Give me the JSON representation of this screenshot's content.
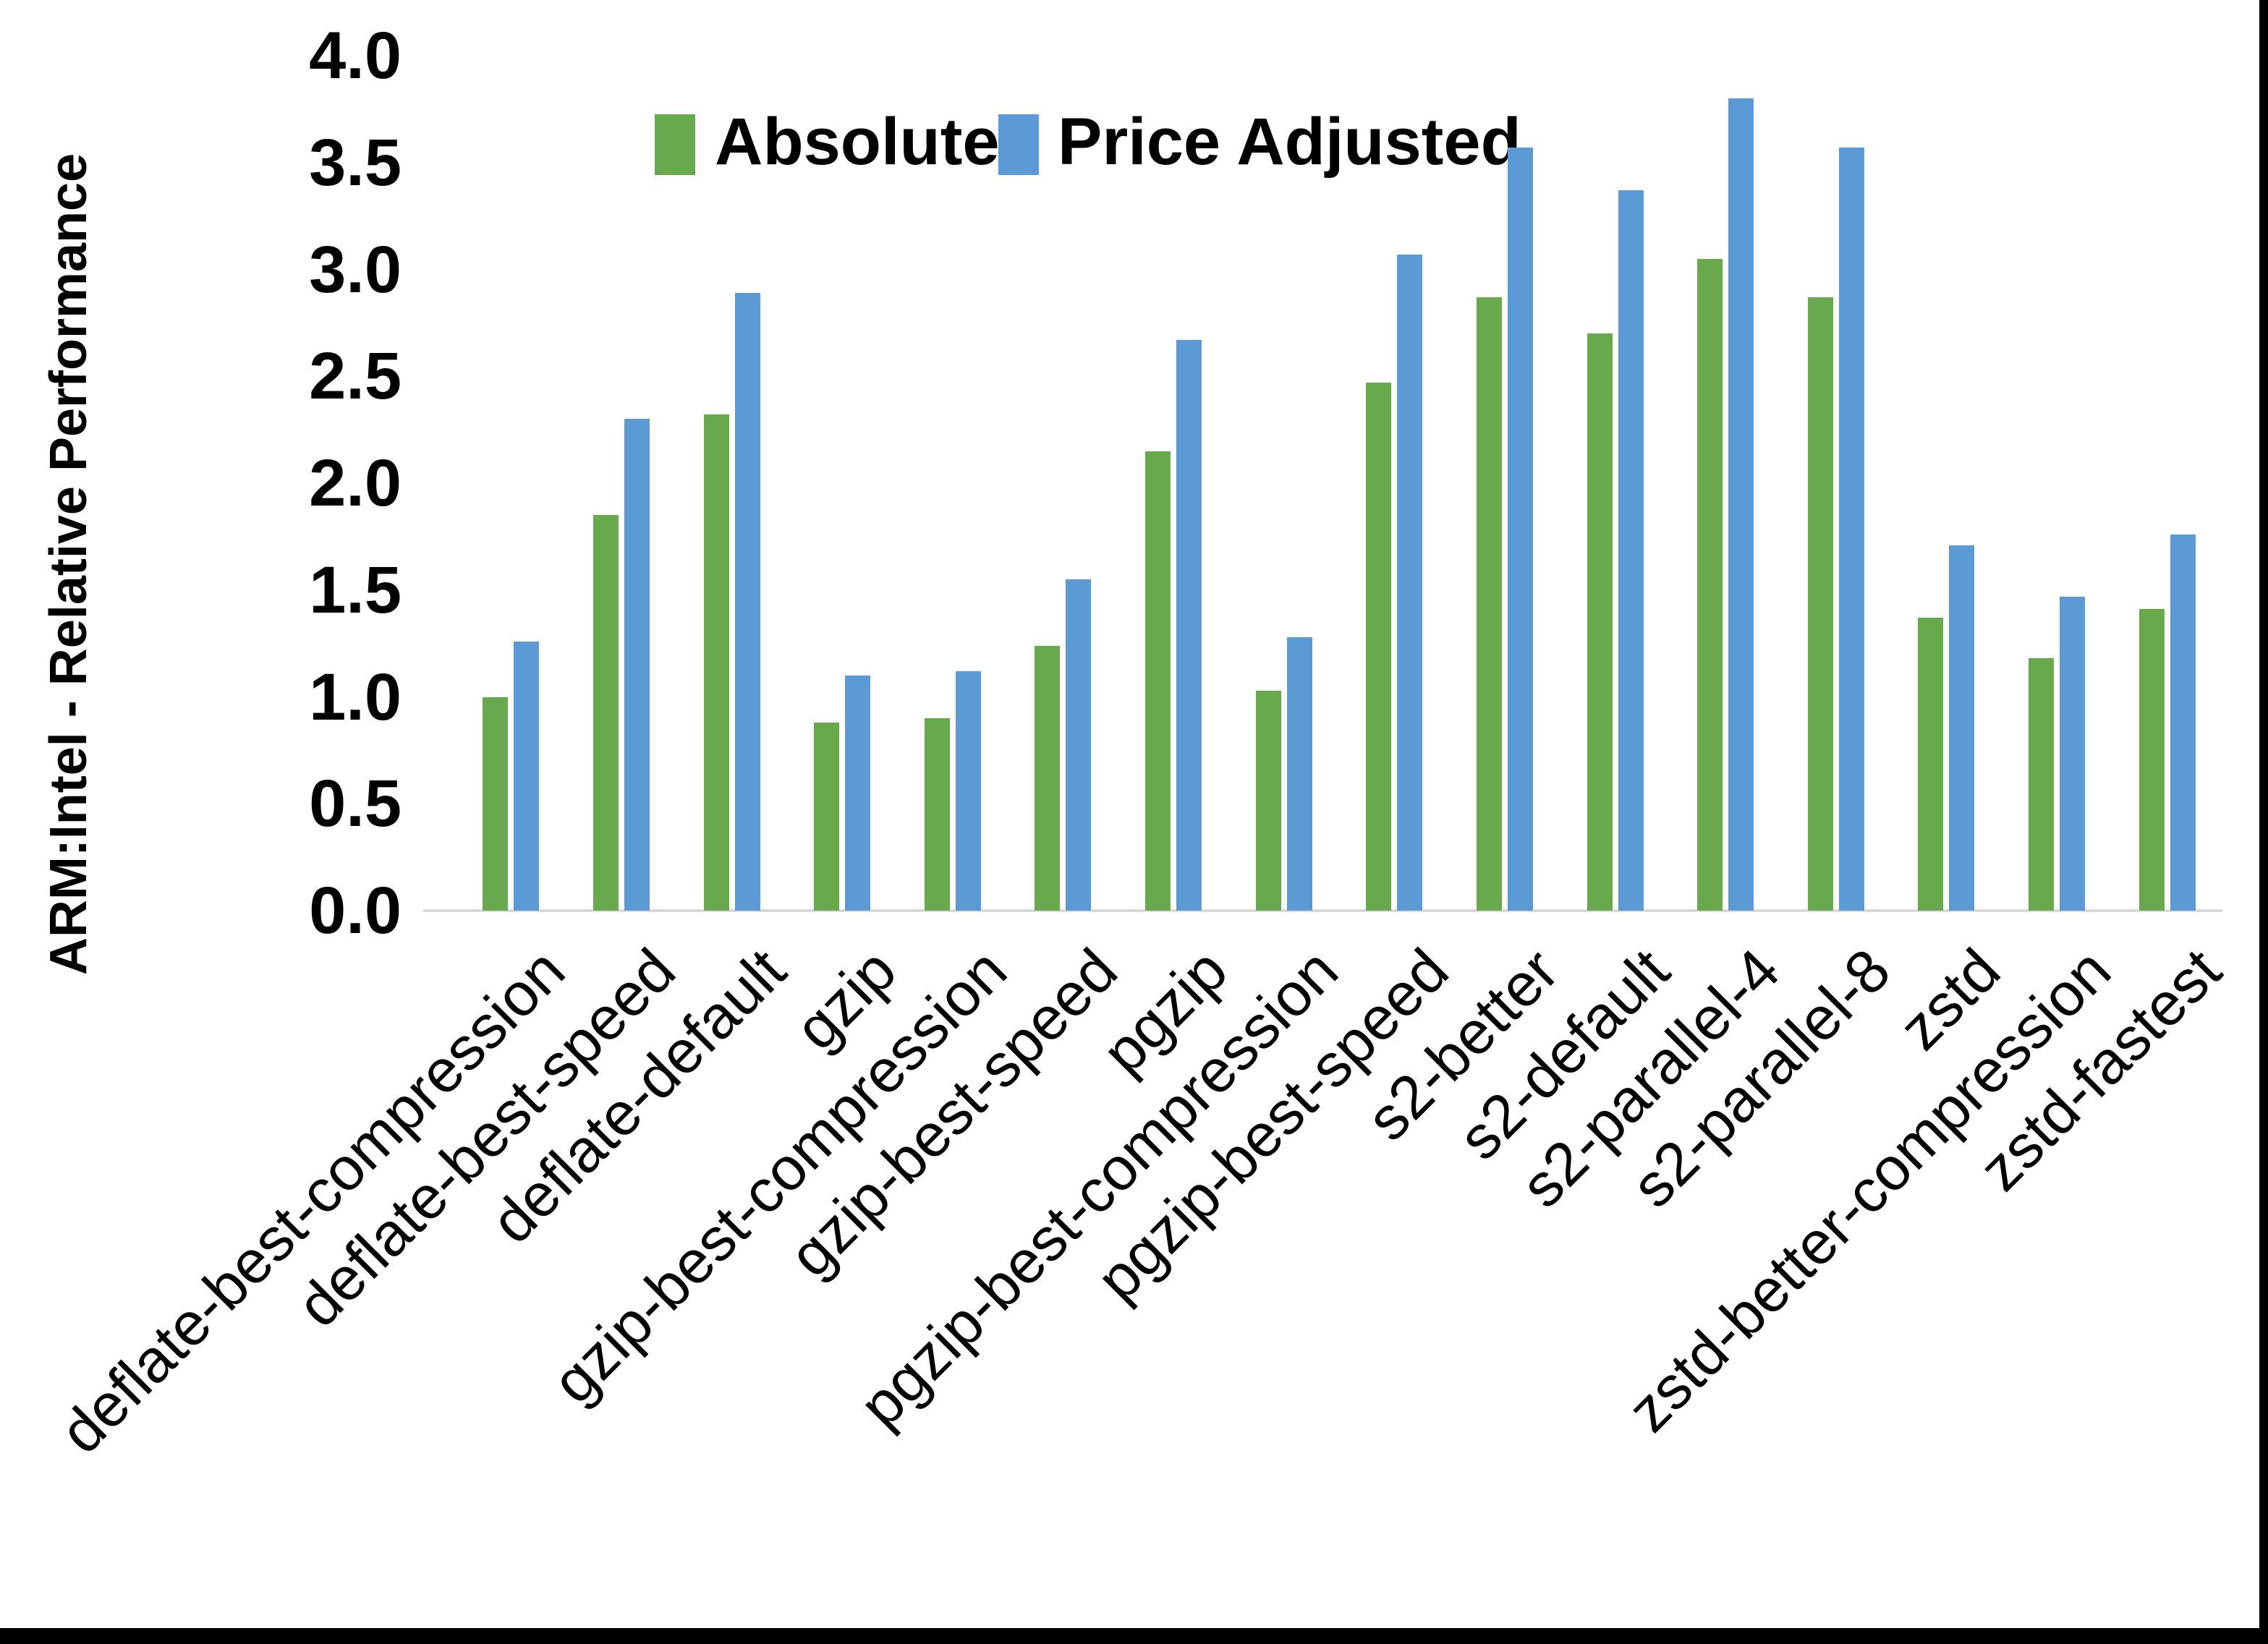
{
  "chart_data": {
    "type": "bar",
    "title": "",
    "ylabel": "ARM:Intel - Relative Performance",
    "xlabel": "",
    "ylim": [
      0.0,
      4.0
    ],
    "ytick_labels": [
      "4.0",
      "3.5",
      "3.0",
      "2.5",
      "2.0",
      "1.5",
      "1.0",
      "0.5",
      "0.0"
    ],
    "grid": false,
    "legend": {
      "position": "top-center",
      "entries": [
        "Absolute",
        "Price Adjusted"
      ]
    },
    "categories": [
      "deflate-best-compression",
      "deflate-best-speed",
      "deflate-default",
      "gzip",
      "gzip-best-compression",
      "gzip-best-speed",
      "pgzip",
      "pgzip-best-compression",
      "pgzip-best-speed",
      "s2-better",
      "s2-default",
      "s2-parallel-4",
      "s2-parallel-8",
      "zstd",
      "zstd-better-compression",
      "zstd-fastest"
    ],
    "series": [
      {
        "name": "Absolute",
        "color": "#69a94d",
        "values": [
          1.0,
          1.85,
          2.32,
          0.88,
          0.9,
          1.24,
          2.15,
          1.03,
          2.47,
          2.87,
          2.7,
          3.05,
          2.87,
          1.37,
          1.18,
          1.41
        ]
      },
      {
        "name": "Price Adjusted",
        "color": "#5c9ad5",
        "values": [
          1.26,
          2.3,
          2.89,
          1.1,
          1.12,
          1.55,
          2.67,
          1.28,
          3.07,
          3.57,
          3.37,
          3.8,
          3.57,
          1.71,
          1.47,
          1.76
        ]
      }
    ],
    "axis_line_color": "#d9d9d9",
    "border_color": "#000000"
  }
}
